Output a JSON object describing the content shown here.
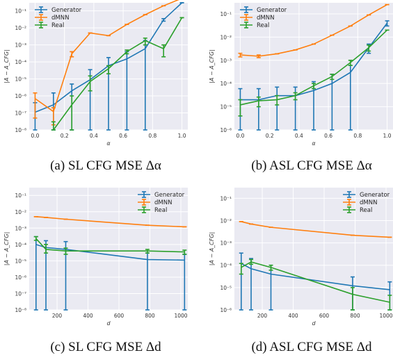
{
  "chart_data": [
    {
      "type": "line",
      "caption": "(a) SL CFG MSE Δα",
      "xlabel": "α",
      "ylabel": "|A − A_CFG|",
      "xlim": [
        -0.04,
        1.04
      ],
      "yscale": "log",
      "ylim": [
        1e-08,
        0.3
      ],
      "xticks": [
        "0.0",
        "0.2",
        "0.4",
        "0.6",
        "0.8",
        "1.0"
      ],
      "xtick_values": [
        0.0,
        0.2,
        0.4,
        0.6,
        0.8,
        1.0
      ],
      "yticks": [
        "10⁻⁸",
        "10⁻⁷",
        "10⁻⁶",
        "10⁻⁵",
        "10⁻⁴",
        "10⁻³",
        "10⁻²",
        "10⁻¹"
      ],
      "ytick_values": [
        -8,
        -7,
        -6,
        -5,
        -4,
        -3,
        -2,
        -1
      ],
      "legend": "top-left",
      "grid": true,
      "x": [
        0.0,
        0.125,
        0.25,
        0.375,
        0.5,
        0.625,
        0.75,
        0.875,
        1.0
      ],
      "series": [
        {
          "name": "Generator",
          "color": "#1f77b4",
          "values": [
            1.1e-07,
            3e-07,
            2e-06,
            9e-06,
            6e-05,
            0.00015,
            0.0006,
            0.03,
            0.3
          ],
          "err_low": [
            1e-08,
            1e-08,
            1e-08,
            1e-08,
            1e-08,
            1e-08,
            1e-08,
            0.025,
            0.3
          ],
          "err_high": [
            4e-07,
            1.5e-06,
            5e-06,
            3.5e-05,
            0.00018,
            0.0004,
            0.0018,
            0.035,
            0.3
          ]
        },
        {
          "name": "dMNN",
          "color": "#ff7f0e",
          "values": [
            7e-07,
            1.2e-07,
            0.0003,
            0.005,
            0.0035,
            0.016,
            0.06,
            0.2,
            0.55
          ],
          "err_low": [
            5e-08,
            2e-08,
            0.0002,
            0.005,
            0.0035,
            0.016,
            0.06,
            0.2,
            0.55
          ],
          "err_high": [
            1.5e-06,
            2e-07,
            0.0004,
            0.005,
            0.0035,
            0.016,
            0.06,
            0.2,
            0.55
          ]
        },
        {
          "name": "Real",
          "color": "#2ca02c",
          "values": [
            null,
            1e-08,
            3e-07,
            7e-06,
            4e-05,
            0.0004,
            0.0018,
            0.0006,
            0.04
          ],
          "err_low": [
            null,
            1e-08,
            1e-08,
            2e-06,
            2e-05,
            0.0003,
            0.001,
            0.0002,
            0.04
          ],
          "err_high": [
            null,
            3e-08,
            1e-06,
            1.5e-05,
            6e-05,
            0.0005,
            0.0025,
            0.001,
            0.04
          ]
        }
      ]
    },
    {
      "type": "line",
      "caption": "(b) ASL CFG MSE Δα",
      "xlabel": "α",
      "ylabel": "|A − A_CFG|",
      "xlim": [
        -0.04,
        1.04
      ],
      "yscale": "log",
      "ylim": [
        1e-06,
        0.3
      ],
      "xticks": [
        "0.0",
        "0.2",
        "0.4",
        "0.6",
        "0.8",
        "1.0"
      ],
      "xtick_values": [
        0.0,
        0.2,
        0.4,
        0.6,
        0.8,
        1.0
      ],
      "yticks": [
        "10⁻⁶",
        "10⁻⁵",
        "10⁻⁴",
        "10⁻³",
        "10⁻²",
        "10⁻¹"
      ],
      "ytick_values": [
        -6,
        -5,
        -4,
        -3,
        -2,
        -1
      ],
      "legend": "top-left",
      "grid": true,
      "x": [
        0.0,
        0.125,
        0.25,
        0.375,
        0.5,
        0.625,
        0.75,
        0.875,
        1.0
      ],
      "series": [
        {
          "name": "Generator",
          "color": "#1f77b4",
          "values": [
            2e-05,
            2e-05,
            3e-05,
            3e-05,
            5e-05,
            0.0001,
            0.0003,
            0.0035,
            0.04
          ],
          "err_low": [
            1e-06,
            1e-06,
            1e-06,
            1e-06,
            1e-06,
            1e-06,
            1e-06,
            0.002,
            0.03
          ],
          "err_high": [
            6e-05,
            6e-05,
            7e-05,
            7e-05,
            0.00012,
            0.00025,
            0.0006,
            0.005,
            0.05
          ]
        },
        {
          "name": "dMNN",
          "color": "#ff7f0e",
          "values": [
            0.0017,
            0.0015,
            0.0019,
            0.0028,
            0.005,
            0.012,
            0.03,
            0.09,
            0.25
          ],
          "err_low": [
            0.0014,
            0.0013,
            0.0019,
            0.0028,
            0.005,
            0.012,
            0.03,
            0.09,
            0.25
          ],
          "err_high": [
            0.002,
            0.0017,
            0.0019,
            0.0028,
            0.005,
            0.012,
            0.03,
            0.09,
            0.25
          ]
        },
        {
          "name": "Real",
          "color": "#2ca02c",
          "values": [
            1.2e-05,
            1.8e-05,
            2e-05,
            3e-05,
            8e-05,
            0.0002,
            0.0008,
            0.0035,
            0.02
          ],
          "err_low": [
            4e-06,
            1e-05,
            1.2e-05,
            2e-05,
            6e-05,
            0.00015,
            0.0006,
            0.0025,
            0.02
          ],
          "err_high": [
            2e-05,
            2.6e-05,
            3e-05,
            4e-05,
            0.0001,
            0.00025,
            0.001,
            0.0045,
            0.02
          ]
        }
      ]
    },
    {
      "type": "line",
      "caption": "(c) SL CFG MSE Δd",
      "xlabel": "d",
      "ylabel": "|A − A_CFG|",
      "xlim": [
        20,
        1045
      ],
      "yscale": "log",
      "ylim": [
        1e-08,
        0.3
      ],
      "xticks": [
        "200",
        "400",
        "600",
        "800",
        "1000"
      ],
      "xtick_values": [
        200,
        400,
        600,
        800,
        1000
      ],
      "yticks": [
        "10⁻⁸",
        "10⁻⁷",
        "10⁻⁶",
        "10⁻⁵",
        "10⁻⁴",
        "10⁻³",
        "10⁻²",
        "10⁻¹"
      ],
      "ytick_values": [
        -8,
        -7,
        -6,
        -5,
        -4,
        -3,
        -2,
        -1
      ],
      "legend": "top-right",
      "grid": true,
      "x": [
        64,
        128,
        256,
        784,
        1024
      ],
      "series": [
        {
          "name": "Generator",
          "color": "#1f77b4",
          "values": [
            0.0001,
            6.5e-05,
            5e-05,
            1.2e-05,
            1.1e-05
          ],
          "err_low": [
            1e-08,
            1e-08,
            1e-08,
            1e-08,
            1e-08
          ],
          "err_high": [
            0.0003,
            0.00017,
            0.00015,
            3e-05,
            2.5e-05
          ]
        },
        {
          "name": "dMNN",
          "color": "#ff7f0e",
          "values": [
            0.005,
            0.0045,
            0.0035,
            0.0015,
            0.0012
          ],
          "err_low": [
            0.005,
            0.0045,
            0.0035,
            0.0015,
            0.0012
          ],
          "err_high": [
            0.005,
            0.0045,
            0.0035,
            0.0015,
            0.0012
          ]
        },
        {
          "name": "Real",
          "color": "#2ca02c",
          "values": [
            0.00023,
            5e-05,
            4e-05,
            4e-05,
            3.5e-05
          ],
          "err_low": [
            0.00018,
            3e-05,
            2.5e-05,
            3e-05,
            2.5e-05
          ],
          "err_high": [
            0.0003,
            0.0001,
            6e-05,
            5e-05,
            4.5e-05
          ]
        }
      ]
    },
    {
      "type": "line",
      "caption": "(d) ASL CFG MSE Δd",
      "xlabel": "d",
      "ylabel": "|A − A_CFG|",
      "xlim": [
        20,
        1045
      ],
      "yscale": "log",
      "ylim": [
        1e-06,
        0.3
      ],
      "xticks": [
        "200",
        "400",
        "600",
        "800",
        "1000"
      ],
      "xtick_values": [
        200,
        400,
        600,
        800,
        1000
      ],
      "yticks": [
        "10⁻⁶",
        "10⁻⁵",
        "10⁻⁴",
        "10⁻³",
        "10⁻²",
        "10⁻¹"
      ],
      "ytick_values": [
        -6,
        -5,
        -4,
        -3,
        -2,
        -1
      ],
      "legend": "top-right",
      "grid": true,
      "x": [
        64,
        128,
        256,
        784,
        1024
      ],
      "series": [
        {
          "name": "Generator",
          "color": "#1f77b4",
          "values": [
            0.00012,
            7e-05,
            4e-05,
            1.2e-05,
            8e-06
          ],
          "err_low": [
            1e-06,
            1e-06,
            1e-06,
            1e-06,
            1e-06
          ],
          "err_high": [
            0.00035,
            0.0002,
            0.0001,
            3e-05,
            1.8e-05
          ]
        },
        {
          "name": "dMNN",
          "color": "#ff7f0e",
          "values": [
            0.009,
            0.007,
            0.005,
            0.0022,
            0.0018
          ],
          "err_low": [
            0.009,
            0.007,
            0.005,
            0.0022,
            0.0018
          ],
          "err_high": [
            0.009,
            0.007,
            0.005,
            0.0022,
            0.0018
          ]
        },
        {
          "name": "Real",
          "color": "#2ca02c",
          "values": [
            8e-05,
            0.00014,
            8e-05,
            5e-06,
            2.2e-06
          ],
          "err_low": [
            4e-05,
            0.00011,
            6e-05,
            1e-06,
            1e-06
          ],
          "err_high": [
            0.00012,
            0.00018,
            0.0001,
            1e-05,
            4.5e-06
          ]
        }
      ]
    }
  ]
}
